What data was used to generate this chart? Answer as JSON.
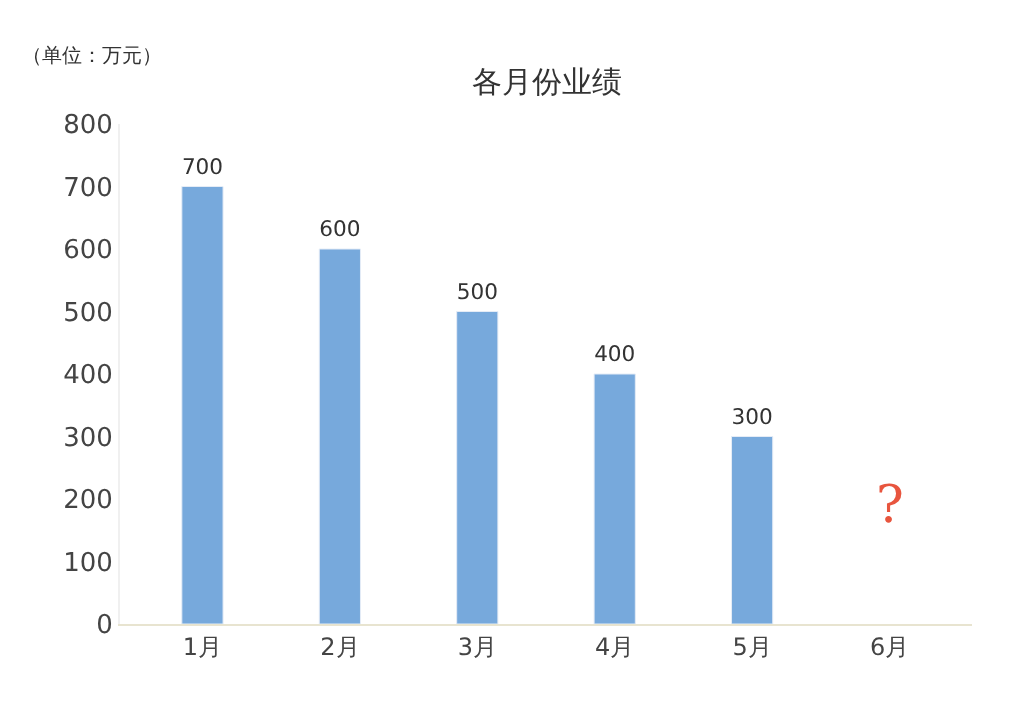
{
  "chart_data": {
    "type": "bar",
    "title": "各月份业绩",
    "categories": [
      "1月",
      "2月",
      "3月",
      "4月",
      "5月",
      "6月"
    ],
    "values": [
      700,
      600,
      500,
      400,
      300,
      null
    ],
    "color": "#77a9dc",
    "ylim": [
      0,
      800
    ],
    "yticks": [
      0,
      100,
      200,
      300,
      400,
      500,
      600,
      700,
      800
    ],
    "data_labels": true,
    "legend": false,
    "annotations": [
      "（单位：万元）",
      "?"
    ]
  }
}
